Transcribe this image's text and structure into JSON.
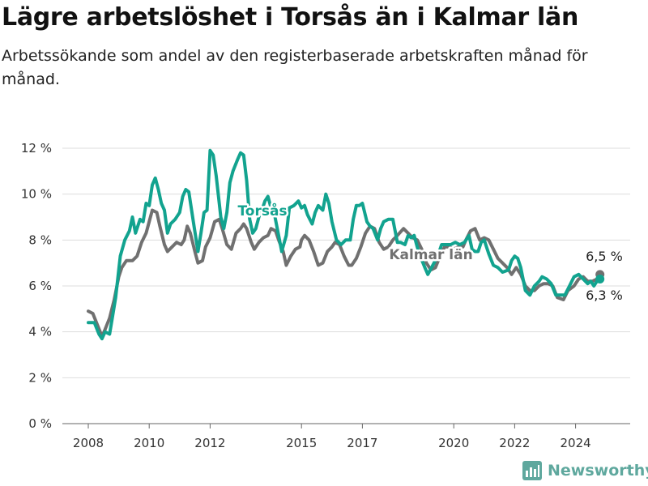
{
  "title": "Lägre arbetslöshet i Torsås än i Kalmar län",
  "subtitle": "Arbetssökande som andel av den registerbaserade arbetskraften månad för månad.",
  "brand": "Newsworthy",
  "colors": {
    "torsas": "#12a38f",
    "kalmar": "#707070",
    "grid": "#dddddd",
    "axis": "#666666"
  },
  "chart_data": {
    "type": "line",
    "title": "Lägre arbetslöshet i Torsås än i Kalmar län",
    "xlabel": "",
    "ylabel": "",
    "ylim": [
      0,
      12
    ],
    "xlim": [
      2007.5,
      2025.2
    ],
    "y_ticks": [
      0,
      2,
      4,
      6,
      8,
      10,
      12
    ],
    "y_tick_labels": [
      "0 %",
      "2 %",
      "4 %",
      "6 %",
      "8 %",
      "10 %",
      "12 %"
    ],
    "x_ticks": [
      2008,
      2010,
      2012,
      2015,
      2017,
      2020,
      2022,
      2024
    ],
    "x_tick_labels": [
      "2008",
      "2010",
      "2012",
      "2015",
      "2017",
      "2020",
      "2022",
      "2024"
    ],
    "grid": true,
    "legend": "inline labels",
    "series": [
      {
        "name": "Torsås",
        "color": "#12a38f",
        "end_label": "6,3 %",
        "points": [
          [
            2008.0,
            4.4
          ],
          [
            2008.2,
            4.4
          ],
          [
            2008.35,
            3.9
          ],
          [
            2008.45,
            3.7
          ],
          [
            2008.55,
            4.0
          ],
          [
            2008.7,
            3.9
          ],
          [
            2008.8,
            4.7
          ],
          [
            2008.9,
            5.5
          ],
          [
            2009.05,
            7.3
          ],
          [
            2009.2,
            8.0
          ],
          [
            2009.35,
            8.4
          ],
          [
            2009.45,
            9.0
          ],
          [
            2009.55,
            8.3
          ],
          [
            2009.7,
            8.9
          ],
          [
            2009.8,
            8.8
          ],
          [
            2009.9,
            9.6
          ],
          [
            2010.0,
            9.5
          ],
          [
            2010.1,
            10.4
          ],
          [
            2010.2,
            10.7
          ],
          [
            2010.3,
            10.2
          ],
          [
            2010.4,
            9.6
          ],
          [
            2010.5,
            9.3
          ],
          [
            2010.6,
            8.3
          ],
          [
            2010.7,
            8.7
          ],
          [
            2010.85,
            8.9
          ],
          [
            2011.0,
            9.2
          ],
          [
            2011.1,
            9.9
          ],
          [
            2011.2,
            10.2
          ],
          [
            2011.3,
            10.1
          ],
          [
            2011.45,
            8.8
          ],
          [
            2011.6,
            7.5
          ],
          [
            2011.7,
            8.3
          ],
          [
            2011.8,
            9.2
          ],
          [
            2011.9,
            9.3
          ],
          [
            2012.0,
            11.9
          ],
          [
            2012.1,
            11.7
          ],
          [
            2012.2,
            10.8
          ],
          [
            2012.35,
            9.0
          ],
          [
            2012.45,
            8.5
          ],
          [
            2012.55,
            9.2
          ],
          [
            2012.65,
            10.5
          ],
          [
            2012.75,
            11.0
          ],
          [
            2012.9,
            11.5
          ],
          [
            2013.0,
            11.8
          ],
          [
            2013.1,
            11.7
          ],
          [
            2013.2,
            10.6
          ],
          [
            2013.3,
            8.9
          ],
          [
            2013.4,
            8.3
          ],
          [
            2013.5,
            8.5
          ],
          [
            2013.6,
            9.0
          ],
          [
            2013.7,
            9.3
          ],
          [
            2013.8,
            9.7
          ],
          [
            2013.9,
            9.9
          ],
          [
            2014.0,
            9.4
          ],
          [
            2014.1,
            9.2
          ],
          [
            2014.25,
            8.2
          ],
          [
            2014.35,
            7.5
          ],
          [
            2014.5,
            8.2
          ],
          [
            2014.6,
            9.4
          ],
          [
            2014.75,
            9.5
          ],
          [
            2014.9,
            9.7
          ],
          [
            2015.0,
            9.4
          ],
          [
            2015.1,
            9.5
          ],
          [
            2015.2,
            9.1
          ],
          [
            2015.35,
            8.7
          ],
          [
            2015.45,
            9.2
          ],
          [
            2015.55,
            9.5
          ],
          [
            2015.7,
            9.3
          ],
          [
            2015.8,
            10.0
          ],
          [
            2015.9,
            9.6
          ],
          [
            2016.0,
            8.8
          ],
          [
            2016.15,
            8.0
          ],
          [
            2016.3,
            7.8
          ],
          [
            2016.45,
            8.0
          ],
          [
            2016.6,
            8.0
          ],
          [
            2016.7,
            8.9
          ],
          [
            2016.8,
            9.5
          ],
          [
            2016.9,
            9.5
          ],
          [
            2017.0,
            9.6
          ],
          [
            2017.15,
            8.8
          ],
          [
            2017.25,
            8.6
          ],
          [
            2017.35,
            8.5
          ],
          [
            2017.5,
            8.0
          ],
          [
            2017.6,
            8.5
          ],
          [
            2017.7,
            8.8
          ],
          [
            2017.85,
            8.9
          ],
          [
            2018.0,
            8.9
          ],
          [
            2018.15,
            7.9
          ],
          [
            2018.25,
            7.9
          ],
          [
            2018.4,
            7.8
          ],
          [
            2018.5,
            8.2
          ],
          [
            2018.6,
            8.1
          ],
          [
            2018.7,
            8.2
          ],
          [
            2018.8,
            7.7
          ],
          [
            2018.9,
            7.3
          ],
          [
            2019.05,
            6.8
          ],
          [
            2019.15,
            6.5
          ],
          [
            2019.35,
            7.0
          ],
          [
            2019.5,
            7.4
          ],
          [
            2019.6,
            7.8
          ],
          [
            2019.75,
            7.8
          ],
          [
            2019.9,
            7.8
          ],
          [
            2020.05,
            7.9
          ],
          [
            2020.2,
            7.8
          ],
          [
            2020.35,
            7.9
          ],
          [
            2020.5,
            8.2
          ],
          [
            2020.6,
            7.6
          ],
          [
            2020.7,
            7.5
          ],
          [
            2020.8,
            7.5
          ],
          [
            2020.9,
            7.9
          ],
          [
            2021.0,
            8.0
          ],
          [
            2021.15,
            7.4
          ],
          [
            2021.3,
            6.9
          ],
          [
            2021.45,
            6.8
          ],
          [
            2021.6,
            6.6
          ],
          [
            2021.8,
            6.7
          ],
          [
            2021.9,
            7.1
          ],
          [
            2022.0,
            7.3
          ],
          [
            2022.1,
            7.2
          ],
          [
            2022.2,
            6.8
          ],
          [
            2022.35,
            5.8
          ],
          [
            2022.5,
            5.6
          ],
          [
            2022.65,
            6.0
          ],
          [
            2022.8,
            6.2
          ],
          [
            2022.9,
            6.4
          ],
          [
            2023.05,
            6.3
          ],
          [
            2023.2,
            6.1
          ],
          [
            2023.35,
            5.6
          ],
          [
            2023.5,
            5.6
          ],
          [
            2023.65,
            5.6
          ],
          [
            2023.8,
            6.0
          ],
          [
            2023.95,
            6.4
          ],
          [
            2024.1,
            6.5
          ],
          [
            2024.25,
            6.3
          ],
          [
            2024.4,
            6.1
          ],
          [
            2024.5,
            6.2
          ],
          [
            2024.6,
            6.0
          ],
          [
            2024.7,
            6.2
          ],
          [
            2024.8,
            6.3
          ]
        ]
      },
      {
        "name": "Kalmar län",
        "color": "#707070",
        "end_label": "6,5 %",
        "points": [
          [
            2008.0,
            4.9
          ],
          [
            2008.15,
            4.8
          ],
          [
            2008.3,
            4.3
          ],
          [
            2008.45,
            3.8
          ],
          [
            2008.55,
            4.1
          ],
          [
            2008.7,
            4.6
          ],
          [
            2008.85,
            5.4
          ],
          [
            2009.0,
            6.4
          ],
          [
            2009.1,
            6.8
          ],
          [
            2009.25,
            7.1
          ],
          [
            2009.45,
            7.1
          ],
          [
            2009.6,
            7.3
          ],
          [
            2009.75,
            7.9
          ],
          [
            2009.9,
            8.3
          ],
          [
            2010.0,
            8.8
          ],
          [
            2010.1,
            9.3
          ],
          [
            2010.25,
            9.2
          ],
          [
            2010.35,
            8.6
          ],
          [
            2010.5,
            7.8
          ],
          [
            2010.6,
            7.5
          ],
          [
            2010.75,
            7.7
          ],
          [
            2010.9,
            7.9
          ],
          [
            2011.05,
            7.8
          ],
          [
            2011.15,
            8.0
          ],
          [
            2011.25,
            8.6
          ],
          [
            2011.35,
            8.3
          ],
          [
            2011.5,
            7.5
          ],
          [
            2011.6,
            7.0
          ],
          [
            2011.75,
            7.1
          ],
          [
            2011.85,
            7.7
          ],
          [
            2012.0,
            8.1
          ],
          [
            2012.15,
            8.8
          ],
          [
            2012.3,
            8.9
          ],
          [
            2012.4,
            8.5
          ],
          [
            2012.55,
            7.8
          ],
          [
            2012.7,
            7.6
          ],
          [
            2012.85,
            8.3
          ],
          [
            2013.0,
            8.5
          ],
          [
            2013.1,
            8.7
          ],
          [
            2013.2,
            8.5
          ],
          [
            2013.35,
            7.9
          ],
          [
            2013.45,
            7.6
          ],
          [
            2013.6,
            7.9
          ],
          [
            2013.75,
            8.1
          ],
          [
            2013.9,
            8.2
          ],
          [
            2014.0,
            8.5
          ],
          [
            2014.15,
            8.4
          ],
          [
            2014.25,
            8.0
          ],
          [
            2014.4,
            7.5
          ],
          [
            2014.5,
            6.9
          ],
          [
            2014.65,
            7.3
          ],
          [
            2014.8,
            7.6
          ],
          [
            2014.95,
            7.7
          ],
          [
            2015.0,
            8.0
          ],
          [
            2015.1,
            8.2
          ],
          [
            2015.25,
            8.0
          ],
          [
            2015.4,
            7.5
          ],
          [
            2015.55,
            6.9
          ],
          [
            2015.7,
            7.0
          ],
          [
            2015.85,
            7.5
          ],
          [
            2016.0,
            7.7
          ],
          [
            2016.1,
            7.9
          ],
          [
            2016.25,
            7.8
          ],
          [
            2016.4,
            7.3
          ],
          [
            2016.55,
            6.9
          ],
          [
            2016.65,
            6.9
          ],
          [
            2016.8,
            7.2
          ],
          [
            2016.95,
            7.7
          ],
          [
            2017.1,
            8.3
          ],
          [
            2017.25,
            8.6
          ],
          [
            2017.4,
            8.5
          ],
          [
            2017.55,
            7.9
          ],
          [
            2017.7,
            7.6
          ],
          [
            2017.85,
            7.7
          ],
          [
            2018.0,
            8.0
          ],
          [
            2018.15,
            8.2
          ],
          [
            2018.35,
            8.5
          ],
          [
            2018.5,
            8.3
          ],
          [
            2018.65,
            8.1
          ],
          [
            2018.8,
            8.0
          ],
          [
            2018.95,
            7.6
          ],
          [
            2019.1,
            7.0
          ],
          [
            2019.25,
            6.7
          ],
          [
            2019.4,
            6.8
          ],
          [
            2019.55,
            7.3
          ],
          [
            2019.7,
            7.7
          ],
          [
            2019.85,
            7.7
          ],
          [
            2020.0,
            7.6
          ],
          [
            2020.15,
            7.7
          ],
          [
            2020.3,
            7.7
          ],
          [
            2020.4,
            8.0
          ],
          [
            2020.55,
            8.4
          ],
          [
            2020.7,
            8.5
          ],
          [
            2020.85,
            8.0
          ],
          [
            2021.0,
            8.1
          ],
          [
            2021.15,
            8.0
          ],
          [
            2021.3,
            7.6
          ],
          [
            2021.45,
            7.2
          ],
          [
            2021.6,
            7.0
          ],
          [
            2021.75,
            6.8
          ],
          [
            2021.9,
            6.5
          ],
          [
            2022.05,
            6.8
          ],
          [
            2022.2,
            6.5
          ],
          [
            2022.35,
            6.0
          ],
          [
            2022.5,
            5.8
          ],
          [
            2022.65,
            5.8
          ],
          [
            2022.8,
            6.0
          ],
          [
            2022.95,
            6.1
          ],
          [
            2023.1,
            6.1
          ],
          [
            2023.25,
            6.0
          ],
          [
            2023.4,
            5.5
          ],
          [
            2023.6,
            5.4
          ],
          [
            2023.75,
            5.8
          ],
          [
            2023.95,
            6.0
          ],
          [
            2024.1,
            6.3
          ],
          [
            2024.25,
            6.4
          ],
          [
            2024.4,
            6.2
          ],
          [
            2024.55,
            6.2
          ],
          [
            2024.7,
            6.3
          ],
          [
            2024.8,
            6.5
          ]
        ]
      }
    ]
  }
}
